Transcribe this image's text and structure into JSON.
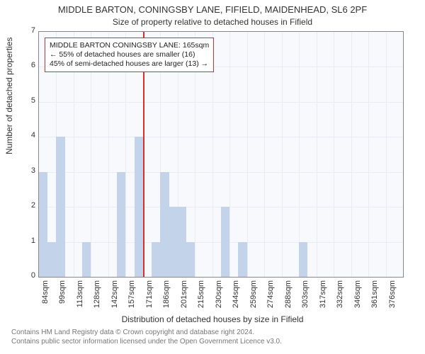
{
  "chart": {
    "type": "histogram",
    "title_main": "MIDDLE BARTON, CONINGSBY LANE, FIFIELD, MAIDENHEAD, SL6 2PF",
    "title_sub": "Size of property relative to detached houses in Fifield",
    "y_label": "Number of detached properties",
    "x_label": "Distribution of detached houses by size in Fifield",
    "ylim": [
      0,
      7
    ],
    "ytick_step": 1,
    "x_start": 84,
    "x_step": 7.3,
    "x_bins_count": 42,
    "x_tick_labels": [
      "84sqm",
      "99sqm",
      "113sqm",
      "128sqm",
      "142sqm",
      "157sqm",
      "171sqm",
      "186sqm",
      "201sqm",
      "215sqm",
      "230sqm",
      "244sqm",
      "259sqm",
      "274sqm",
      "288sqm",
      "303sqm",
      "317sqm",
      "332sqm",
      "346sqm",
      "361sqm",
      "376sqm"
    ],
    "bar_color": "#c2d3ea",
    "background_color": "#f7f9fc",
    "grid_color": "#e9edf3",
    "axis_color": "#888888",
    "marker_color": "#de2d26",
    "marker_x_bin": 12,
    "values": [
      3,
      1,
      4,
      0,
      0,
      1,
      0,
      0,
      0,
      3,
      0,
      4,
      0,
      1,
      3,
      2,
      2,
      1,
      0,
      0,
      0,
      2,
      0,
      1,
      0,
      0,
      0,
      0,
      0,
      0,
      1,
      0,
      0,
      0,
      0,
      0,
      0,
      0,
      0,
      0,
      0,
      0
    ],
    "annotation": {
      "line1": "MIDDLE BARTON CONINGSBY LANE: 165sqm",
      "line2": "← 55% of detached houses are smaller (16)",
      "line3": "45% of semi-detached houses are larger (13) →"
    },
    "footer_line1": "Contains HM Land Registry data © Crown copyright and database right 2024.",
    "footer_line2": "Contains public sector information licensed under the Open Government Licence v3.0."
  },
  "fontsize": {
    "title_main": 13,
    "title_sub": 12,
    "axis_label": 12,
    "tick": 11,
    "annotation": 10.5,
    "footer": 10
  }
}
